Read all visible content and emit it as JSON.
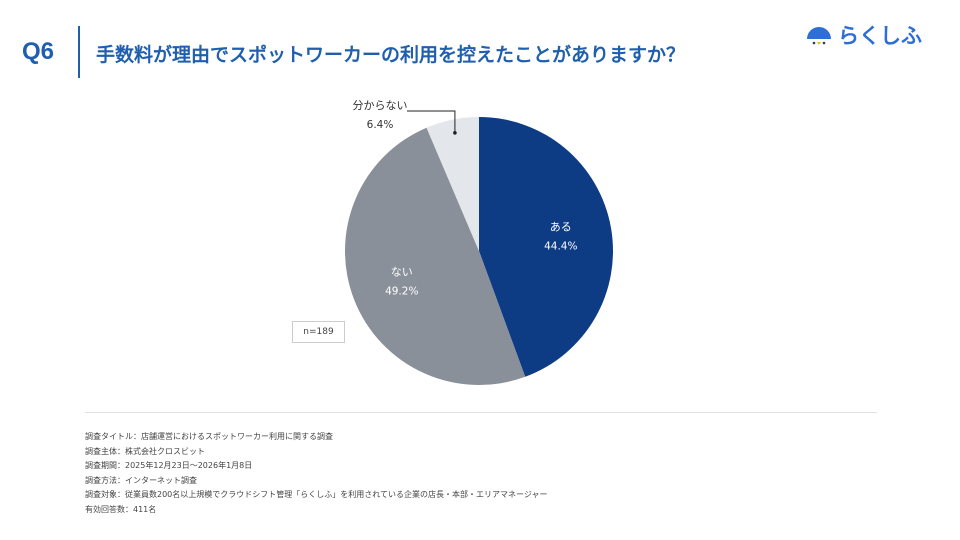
{
  "header": {
    "q": "Q6",
    "title": "手数料が理由でスポットワーカーの利用を控えたことがありますか？",
    "logo": "らくしふ"
  },
  "chart_data": {
    "type": "pie",
    "categories": [
      "ある",
      "ない",
      "分からない"
    ],
    "values": [
      44.4,
      49.2,
      6.4
    ],
    "labels": [
      "44.4%",
      "49.2%",
      "6.4%"
    ],
    "colors": [
      "#0d3c85",
      "#8a909a",
      "#e3e6ea"
    ],
    "sample": "n=189",
    "start": "top, clockwise"
  },
  "footer": [
    "調査タイトル：店舗運営におけるスポットワーカー利用に関する調査",
    "調査主体：株式会社クロスビット",
    "調査期間：2025年12月23日〜2026年1月8日",
    "調査方法：インターネット調査",
    "調査対象：従業員数200名以上規模でクラウドシフト管理「らくしふ」を利用されている企業の店長・本部・エリアマネージャー",
    "有効回答数：411名"
  ]
}
